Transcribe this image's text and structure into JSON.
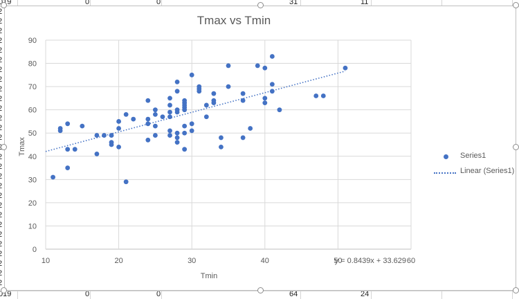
{
  "sheet": {
    "top_row_cells": [
      {
        "text": "019"
      },
      {
        "text": "0"
      },
      {
        "text": "0"
      },
      {
        "text": "31"
      },
      {
        "text": "11"
      }
    ],
    "bottom_row_cells": [
      {
        "text": "019"
      },
      {
        "text": "0"
      },
      {
        "text": "0"
      },
      {
        "text": "64"
      },
      {
        "text": "24"
      }
    ],
    "row_edge_labels": [
      "2",
      "2",
      "2",
      "2",
      "2",
      "2",
      "2",
      "2",
      "2",
      "2",
      "2",
      "2",
      "2",
      "2",
      "2",
      "2",
      "2",
      "2",
      "2",
      "2",
      "2",
      "2",
      "2",
      "2",
      "2",
      "2",
      "2",
      "2",
      "2"
    ]
  },
  "colors": {
    "series": "#4472c4",
    "gridline": "#d9d9d9",
    "axis_text": "#595959",
    "title_text": "#595959"
  },
  "chart_data": {
    "type": "scatter",
    "title": "Tmax vs Tmin",
    "xlabel": "Tmin",
    "ylabel": "Tmax",
    "xlim": [
      10,
      60
    ],
    "ylim": [
      0,
      90
    ],
    "xticks": [
      "10",
      "20",
      "30",
      "40",
      "50",
      "60"
    ],
    "yticks": [
      "0",
      "10",
      "20",
      "30",
      "40",
      "50",
      "60",
      "70",
      "80",
      "90"
    ],
    "grid": true,
    "legend_position": "right",
    "series": [
      {
        "name": "Series1",
        "points": [
          [
            11,
            31
          ],
          [
            12,
            51
          ],
          [
            12,
            52
          ],
          [
            13,
            43
          ],
          [
            13,
            54
          ],
          [
            13,
            35
          ],
          [
            14,
            43
          ],
          [
            15,
            53
          ],
          [
            17,
            49
          ],
          [
            17,
            41
          ],
          [
            18,
            49
          ],
          [
            19,
            49
          ],
          [
            19,
            46
          ],
          [
            19,
            45
          ],
          [
            20,
            55
          ],
          [
            20,
            52
          ],
          [
            20,
            44
          ],
          [
            21,
            58
          ],
          [
            21,
            29
          ],
          [
            22,
            56
          ],
          [
            24,
            64
          ],
          [
            24,
            56
          ],
          [
            24,
            54
          ],
          [
            24,
            47
          ],
          [
            25,
            60
          ],
          [
            25,
            58
          ],
          [
            25,
            53
          ],
          [
            25,
            49
          ],
          [
            26,
            57
          ],
          [
            27,
            65
          ],
          [
            27,
            62
          ],
          [
            27,
            59
          ],
          [
            27,
            57
          ],
          [
            27,
            51
          ],
          [
            27,
            49
          ],
          [
            28,
            72
          ],
          [
            28,
            68
          ],
          [
            28,
            60
          ],
          [
            28,
            59
          ],
          [
            28,
            50
          ],
          [
            28,
            48
          ],
          [
            28,
            46
          ],
          [
            29,
            64
          ],
          [
            29,
            63
          ],
          [
            29,
            62
          ],
          [
            29,
            61
          ],
          [
            29,
            60
          ],
          [
            29,
            53
          ],
          [
            29,
            50
          ],
          [
            29,
            43
          ],
          [
            30,
            75
          ],
          [
            30,
            54
          ],
          [
            30,
            51
          ],
          [
            31,
            70
          ],
          [
            31,
            69
          ],
          [
            31,
            68
          ],
          [
            32,
            62
          ],
          [
            32,
            57
          ],
          [
            33,
            67
          ],
          [
            33,
            64
          ],
          [
            33,
            63
          ],
          [
            34,
            48
          ],
          [
            34,
            44
          ],
          [
            35,
            79
          ],
          [
            35,
            70
          ],
          [
            37,
            67
          ],
          [
            37,
            64
          ],
          [
            37,
            48
          ],
          [
            38,
            52
          ],
          [
            39,
            79
          ],
          [
            40,
            78
          ],
          [
            40,
            65
          ],
          [
            40,
            63
          ],
          [
            41,
            83
          ],
          [
            41,
            71
          ],
          [
            41,
            68
          ],
          [
            42,
            60
          ],
          [
            47,
            66
          ],
          [
            48,
            66
          ],
          [
            51,
            78
          ]
        ]
      }
    ],
    "trendline": {
      "name": "Linear (Series1)",
      "type": "linear",
      "slope": 0.8439,
      "intercept": 33.629,
      "equation": "y = 0.8439x + 33.629"
    }
  }
}
